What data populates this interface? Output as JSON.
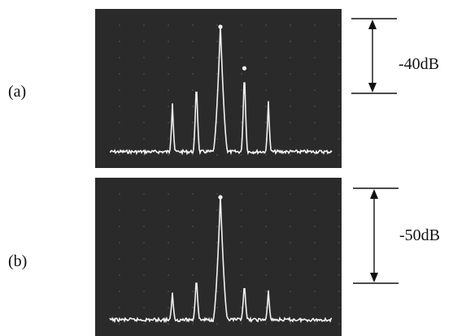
{
  "figure": {
    "panels": [
      {
        "label": "(a)",
        "scale_text": "-40dB",
        "scale_db": 40,
        "peaks": [
          {
            "offset": -3,
            "rel_db": -34
          },
          {
            "offset": -2,
            "rel_db": -23
          },
          {
            "offset": -1,
            "rel_db": 0
          },
          {
            "offset": 0,
            "rel_db": -18
          },
          {
            "offset": 1,
            "rel_db": -33
          }
        ]
      },
      {
        "label": "(b)",
        "scale_text": "-50dB",
        "scale_db": 50,
        "peaks": [
          {
            "offset": -3,
            "rel_db": -43
          },
          {
            "offset": -2,
            "rel_db": -35
          },
          {
            "offset": -1,
            "rel_db": 0
          },
          {
            "offset": 0,
            "rel_db": -38
          },
          {
            "offset": 1,
            "rel_db": -42
          }
        ]
      }
    ],
    "colors": {
      "screen": "#2a2a2a",
      "trace": "#f2f2f2",
      "ink": "#111111"
    }
  }
}
